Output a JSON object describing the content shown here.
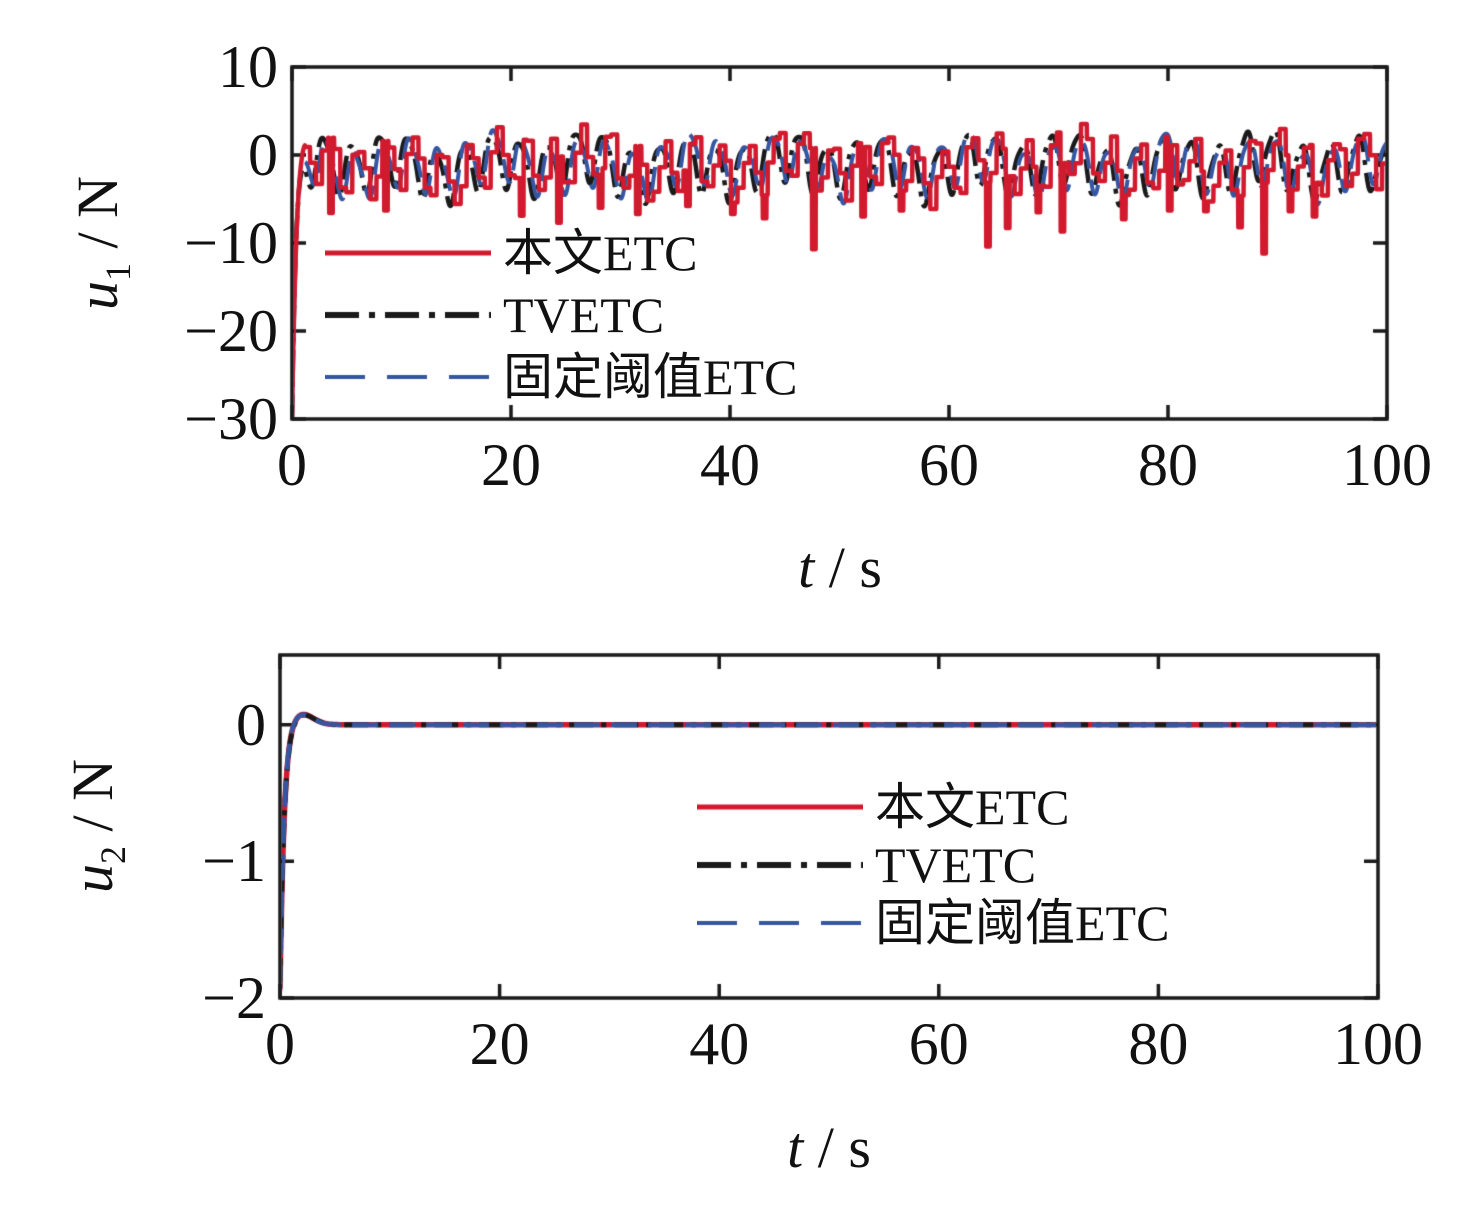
{
  "figure": {
    "background": "#ffffff",
    "axis_color": "#1a1a1a"
  },
  "legend": {
    "entries": [
      {
        "label": "本文ETC",
        "color": "#d21a2e",
        "style": "solid"
      },
      {
        "label": "TVETC",
        "color": "#1a1a1a",
        "style": "dashdot"
      },
      {
        "label": "固定阈值ETC",
        "color": "#3556a2",
        "style": "dashed"
      }
    ]
  },
  "chart_data": [
    {
      "type": "line",
      "title": "",
      "xlabel": "t / s",
      "ylabel": "u1 / N",
      "xlabel_parts": {
        "var": "t",
        "unit": " / s"
      },
      "ylabel_parts": {
        "var": "u",
        "sub": "1",
        "unit": " / N"
      },
      "xlim": [
        0,
        100
      ],
      "ylim": [
        -30,
        10
      ],
      "xticks": [
        0,
        20,
        40,
        60,
        80,
        100
      ],
      "yticks": [
        10,
        0,
        -10,
        -20,
        -30
      ],
      "grid": false,
      "legend_position": "inside upper-left",
      "draw_order": [
        1,
        2,
        0
      ],
      "series": [
        {
          "name": "本文ETC",
          "color": "#d21a2e",
          "style": "solid",
          "line_width": 4.5,
          "signal": {
            "kind": "hold",
            "dt": 0.55,
            "start": -30,
            "rise": 2.6,
            "center": -1.15,
            "components": [
              {
                "a": 3.0,
                "T": 2.55,
                "ph": -0.5
              },
              {
                "a": 1.0,
                "T": 8.8,
                "ph": 0.6
              },
              {
                "a": 0.6,
                "T": 1.31,
                "ph": 0.9
              },
              {
                "a": 0.6,
                "T": 23,
                "ph": 1.2
              }
            ],
            "spike_width": 0.34,
            "spikes": [
              [
                3.4,
                -6.6
              ],
              [
                8.4,
                -6.3
              ],
              [
                20.8,
                -6.9
              ],
              [
                24.2,
                -7.7
              ],
              [
                28,
                -6.0
              ],
              [
                31.4,
                -6.7
              ],
              [
                36,
                -5.8
              ],
              [
                40.1,
                -6.7
              ],
              [
                43,
                -7.2
              ],
              [
                47.5,
                -10.7
              ],
              [
                52,
                -7.0
              ],
              [
                55.5,
                -6.3
              ],
              [
                63.4,
                -10.4
              ],
              [
                65.2,
                -8.3
              ],
              [
                68,
                -6.5
              ],
              [
                70.2,
                -8.7
              ],
              [
                75.8,
                -7.3
              ],
              [
                80,
                -6.3
              ],
              [
                83.3,
                -6.4
              ],
              [
                86.4,
                -8.2
              ],
              [
                88.6,
                -11.2
              ],
              [
                91,
                -6.4
              ],
              [
                93.2,
                -7.0
              ]
            ]
          }
        },
        {
          "name": "TVETC",
          "color": "#1a1a1a",
          "style": "dashdot",
          "line_width": 4.5,
          "signal": {
            "kind": "smooth",
            "start": -30,
            "rise": 2.6,
            "center": -1.1,
            "components": [
              {
                "a": 2.85,
                "T": 2.55,
                "ph": 0.55
              },
              {
                "a": 0.9,
                "T": 8.8,
                "ph": 1.1
              },
              {
                "a": 0.55,
                "T": 1.27,
                "ph": 2.0
              },
              {
                "a": 0.5,
                "T": 21,
                "ph": 0.4
              }
            ]
          }
        },
        {
          "name": "固定阈值ETC",
          "color": "#3556a2",
          "style": "dashed",
          "line_width": 4,
          "signal": {
            "kind": "smooth",
            "start": -30,
            "rise": 2.6,
            "center": -1.1,
            "components": [
              {
                "a": 2.7,
                "T": 2.55,
                "ph": 0.0
              },
              {
                "a": 0.9,
                "T": 8.8,
                "ph": 0.8
              },
              {
                "a": 0.5,
                "T": 1.27,
                "ph": 0.3
              },
              {
                "a": 0.5,
                "T": 21,
                "ph": 2.2
              }
            ]
          }
        }
      ]
    },
    {
      "type": "line",
      "title": "",
      "xlabel": "t / s",
      "ylabel": "u2 / N",
      "xlabel_parts": {
        "var": "t",
        "unit": " / s"
      },
      "ylabel_parts": {
        "var": "u",
        "sub": "2",
        "unit": " / N"
      },
      "xlim": [
        0,
        100
      ],
      "ylim": [
        -2,
        0.51
      ],
      "xticks": [
        0,
        20,
        40,
        60,
        80,
        100
      ],
      "yticks": [
        0,
        -1,
        -2
      ],
      "grid": false,
      "legend_position": "inside middle-right",
      "draw_order": [
        0,
        1,
        2
      ],
      "series": [
        {
          "name": "本文ETC",
          "color": "#d21a2e",
          "style": "solid",
          "line_width": 5.5,
          "signal": {
            "kind": "settle",
            "start": -1.95,
            "decay": 2.6,
            "overshoot": 0.085,
            "overshoot_t": 1.9,
            "overshoot_w": 1.5
          }
        },
        {
          "name": "TVETC",
          "color": "#1a1a1a",
          "style": "dashdot",
          "line_width": 5,
          "signal": {
            "kind": "settle",
            "start": -1.9,
            "decay": 2.55,
            "overshoot": 0.08,
            "overshoot_t": 1.95,
            "overshoot_w": 1.5
          }
        },
        {
          "name": "固定阈值ETC",
          "color": "#3556a2",
          "style": "dashed",
          "line_width": 4.5,
          "signal": {
            "kind": "settle",
            "start": -1.97,
            "decay": 2.65,
            "overshoot": 0.083,
            "overshoot_t": 1.85,
            "overshoot_w": 1.5
          }
        }
      ]
    }
  ]
}
